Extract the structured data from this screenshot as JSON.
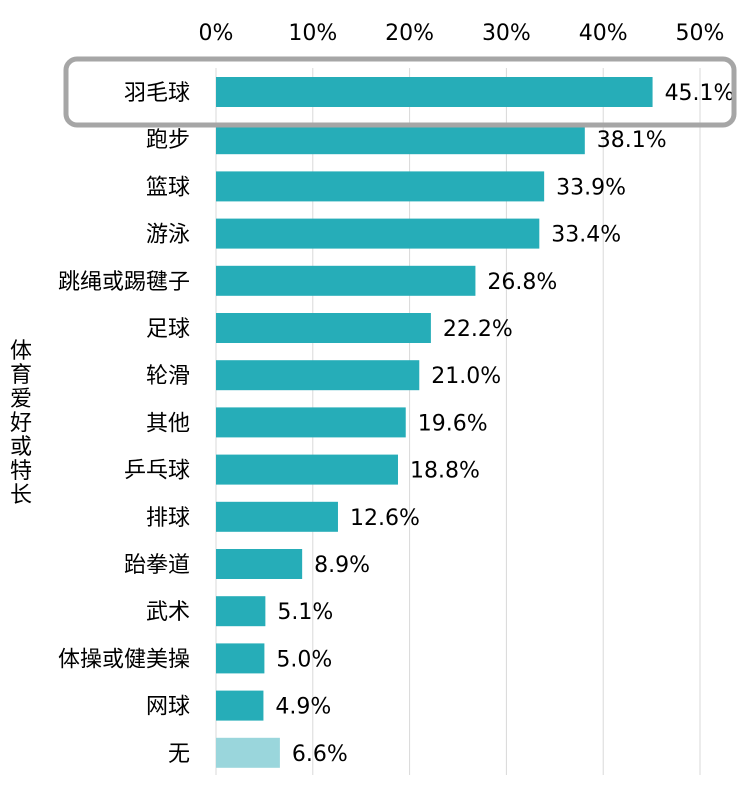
{
  "chart_data": {
    "type": "bar",
    "orientation": "horizontal",
    "ylabel": "体育爱好或特长",
    "xlabel": "",
    "xlim": [
      0,
      50
    ],
    "x_ticks": [
      0,
      10,
      20,
      30,
      40,
      50
    ],
    "x_tick_labels": [
      "0%",
      "10%",
      "20%",
      "30%",
      "40%",
      "50%"
    ],
    "x_axis_position": "top",
    "grid": true,
    "categories": [
      "羽毛球",
      "跑步",
      "篮球",
      "游泳",
      "跳绳或踢毽子",
      "足球",
      "轮滑",
      "其他",
      "乒乓球",
      "排球",
      "跆拳道",
      "武术",
      "体操或健美操",
      "网球",
      "无"
    ],
    "values": [
      45.1,
      38.1,
      33.9,
      33.4,
      26.8,
      22.2,
      21.0,
      19.6,
      18.8,
      12.6,
      8.9,
      5.1,
      5.0,
      4.9,
      6.6
    ],
    "value_labels": [
      "45.1%",
      "38.1%",
      "33.9%",
      "33.4%",
      "26.8%",
      "22.2%",
      "21.0%",
      "19.6%",
      "18.8%",
      "12.6%",
      "8.9%",
      "5.1%",
      "5.0%",
      "4.9%",
      "6.6%"
    ],
    "highlighted_category": "羽毛球",
    "colors": {
      "bar": "#26adb8",
      "bar_light": "#9ad6dc",
      "grid": "#d9d9d9",
      "highlight_border": "#a6a6a6"
    }
  }
}
